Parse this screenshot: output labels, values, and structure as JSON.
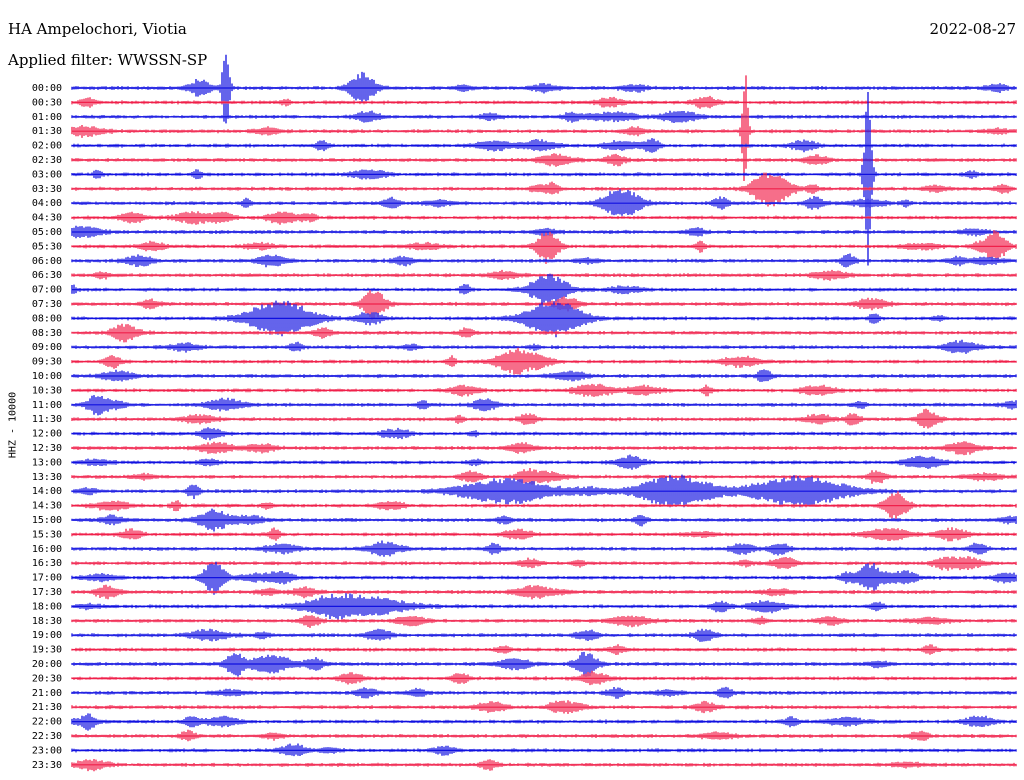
{
  "header": {
    "station": "HA Ampelochori, Viotia",
    "filter": "Applied filter: WWSSN-SP",
    "date": "2022-08-27"
  },
  "chart_data": {
    "type": "line",
    "title": "HA Ampelochori, Viotia",
    "subtitle": "Applied filter: WWSSN-SP",
    "ylabel": "HHZ - 10000",
    "row_labels": [
      "00:00",
      "00:30",
      "01:00",
      "01:30",
      "02:00",
      "02:30",
      "03:00",
      "03:30",
      "04:00",
      "04:30",
      "05:00",
      "05:30",
      "06:00",
      "06:30",
      "07:00",
      "07:30",
      "08:00",
      "08:30",
      "09:00",
      "09:30",
      "10:00",
      "10:30",
      "11:00",
      "11:30",
      "12:00",
      "12:30",
      "13:00",
      "13:30",
      "14:00",
      "14:30",
      "15:00",
      "15:30",
      "16:00",
      "16:30",
      "17:00",
      "17:30",
      "18:00",
      "18:30",
      "19:00",
      "19:30",
      "20:00",
      "20:30",
      "21:00",
      "21:30",
      "22:00",
      "22:30",
      "23:00",
      "23:30"
    ],
    "trace_colors": [
      "#1010e0",
      "#f0204a"
    ],
    "events": [
      {
        "row": 0,
        "pos": 0.163,
        "amp": 46,
        "width": 0.004
      },
      {
        "row": 0,
        "pos": 0.31,
        "amp": 12,
        "width": 0.012
      },
      {
        "row": 3,
        "pos": 0.713,
        "amp": 60,
        "width": 0.003
      },
      {
        "row": 6,
        "pos": 0.843,
        "amp": 90,
        "width": 0.004
      },
      {
        "row": 7,
        "pos": 0.74,
        "amp": 13,
        "width": 0.02
      },
      {
        "row": 8,
        "pos": 0.582,
        "amp": 15,
        "width": 0.02
      },
      {
        "row": 11,
        "pos": 0.504,
        "amp": 16,
        "width": 0.012
      },
      {
        "row": 11,
        "pos": 0.978,
        "amp": 15,
        "width": 0.012
      },
      {
        "row": 14,
        "pos": 0.505,
        "amp": 15,
        "width": 0.02
      },
      {
        "row": 15,
        "pos": 0.32,
        "amp": 15,
        "width": 0.012
      },
      {
        "row": 16,
        "pos": 0.22,
        "amp": 17,
        "width": 0.035
      },
      {
        "row": 16,
        "pos": 0.51,
        "amp": 18,
        "width": 0.03
      },
      {
        "row": 19,
        "pos": 0.47,
        "amp": 12,
        "width": 0.02
      },
      {
        "row": 28,
        "pos": 0.46,
        "amp": 12,
        "width": 0.05
      },
      {
        "row": 28,
        "pos": 0.64,
        "amp": 16,
        "width": 0.04
      },
      {
        "row": 28,
        "pos": 0.77,
        "amp": 15,
        "width": 0.05
      },
      {
        "row": 29,
        "pos": 0.873,
        "amp": 14,
        "width": 0.012
      },
      {
        "row": 34,
        "pos": 0.15,
        "amp": 16,
        "width": 0.012
      },
      {
        "row": 34,
        "pos": 0.845,
        "amp": 14,
        "width": 0.012
      },
      {
        "row": 36,
        "pos": 0.3,
        "amp": 11,
        "width": 0.05
      },
      {
        "row": 40,
        "pos": 0.172,
        "amp": 12,
        "width": 0.01
      },
      {
        "row": 40,
        "pos": 0.545,
        "amp": 12,
        "width": 0.012
      }
    ]
  }
}
